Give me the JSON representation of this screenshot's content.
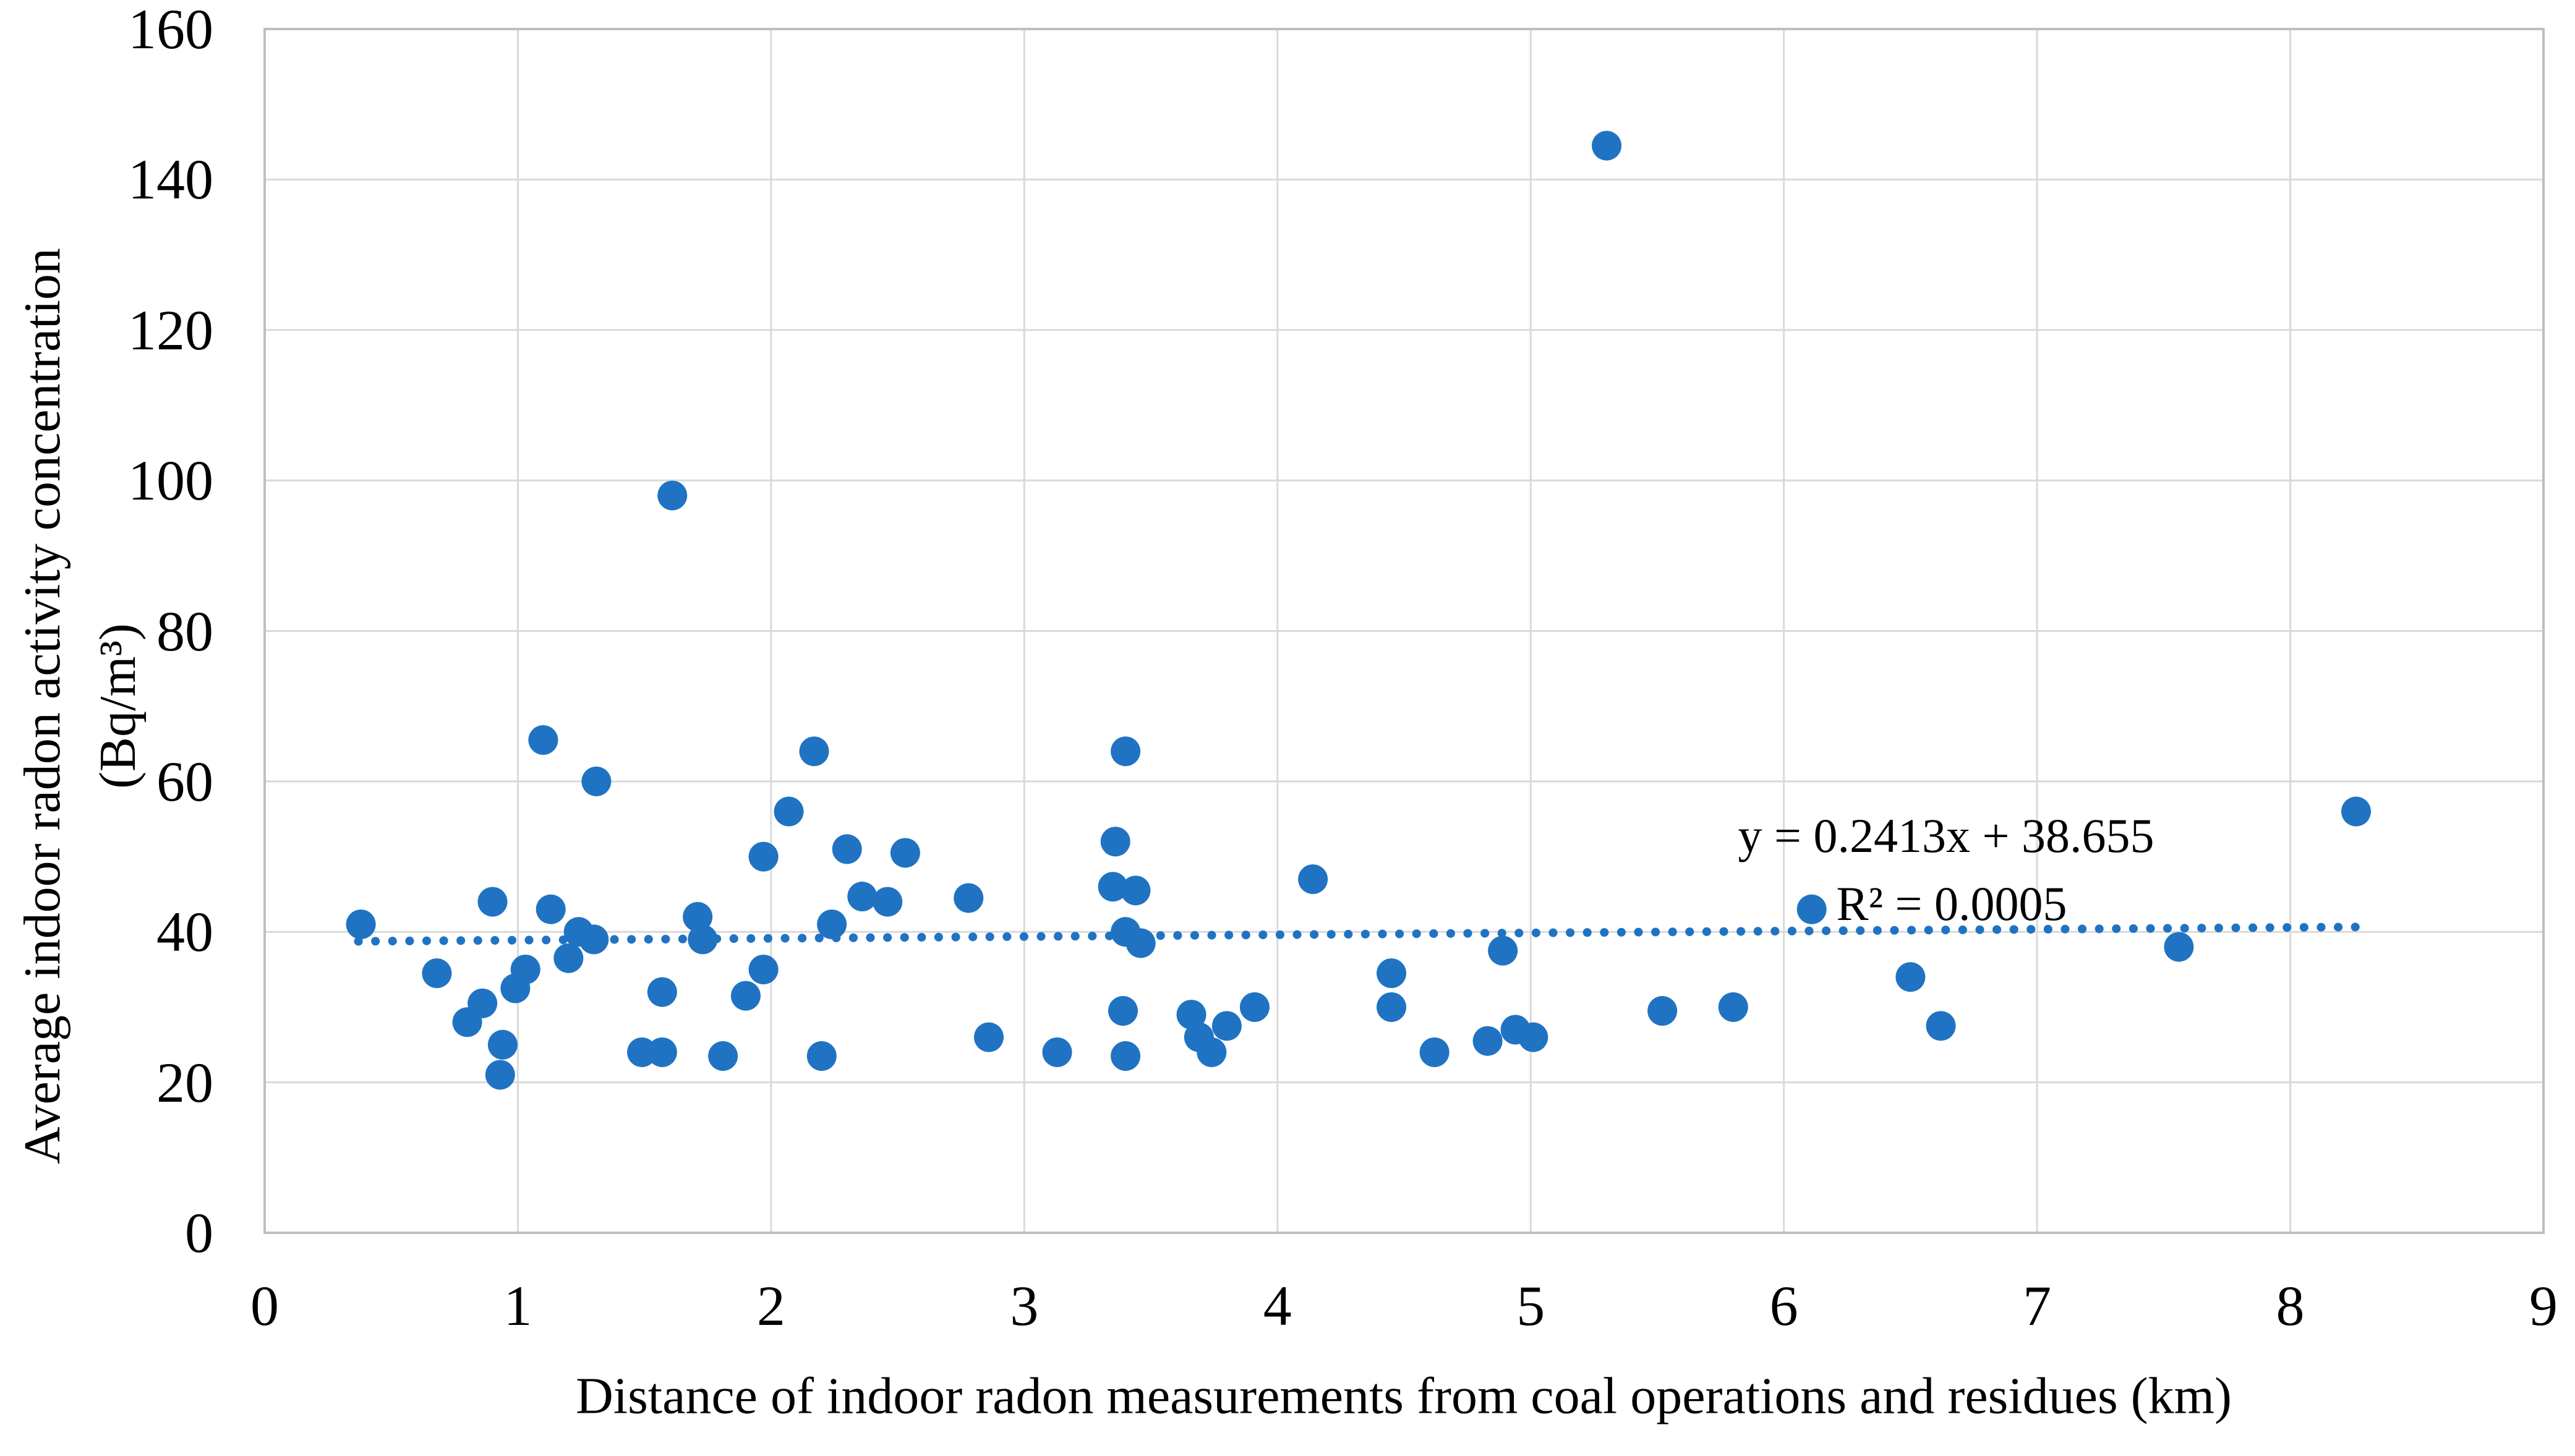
{
  "chart_data": {
    "type": "scatter",
    "title": "",
    "xlabel": "Distance of indoor radon measurements from coal operations and residues (km)",
    "ylabel_line1": "Average indoor radon activity concentration",
    "ylabel_line2": "(Bq/m³)",
    "xlim": [
      0,
      9
    ],
    "ylim": [
      0,
      160
    ],
    "x_ticks": [
      0,
      1,
      2,
      3,
      4,
      5,
      6,
      7,
      8,
      9
    ],
    "y_ticks": [
      0,
      20,
      40,
      60,
      80,
      100,
      120,
      140,
      160
    ],
    "grid": true,
    "legend_position": "none",
    "points": [
      [
        0.38,
        41
      ],
      [
        0.68,
        34.5
      ],
      [
        0.8,
        28
      ],
      [
        0.86,
        30.5
      ],
      [
        0.9,
        44
      ],
      [
        0.93,
        21
      ],
      [
        0.94,
        25
      ],
      [
        0.99,
        32.5
      ],
      [
        1.03,
        35
      ],
      [
        1.1,
        65.5
      ],
      [
        1.13,
        43
      ],
      [
        1.2,
        36.5
      ],
      [
        1.24,
        40
      ],
      [
        1.3,
        39
      ],
      [
        1.31,
        60
      ],
      [
        1.49,
        24
      ],
      [
        1.57,
        24
      ],
      [
        1.57,
        32
      ],
      [
        1.61,
        98
      ],
      [
        1.71,
        42
      ],
      [
        1.73,
        39
      ],
      [
        1.81,
        23.5
      ],
      [
        1.9,
        31.5
      ],
      [
        1.97,
        35
      ],
      [
        1.97,
        50
      ],
      [
        2.07,
        56
      ],
      [
        2.17,
        64
      ],
      [
        2.2,
        23.5
      ],
      [
        2.24,
        41
      ],
      [
        2.3,
        51
      ],
      [
        2.36,
        44.7
      ],
      [
        2.46,
        44
      ],
      [
        2.53,
        50.5
      ],
      [
        2.78,
        44.5
      ],
      [
        2.86,
        26
      ],
      [
        3.13,
        24
      ],
      [
        3.35,
        46
      ],
      [
        3.36,
        52
      ],
      [
        3.39,
        29.5
      ],
      [
        3.4,
        64
      ],
      [
        3.4,
        40
      ],
      [
        3.4,
        23.5
      ],
      [
        3.44,
        45.5
      ],
      [
        3.46,
        38.5
      ],
      [
        3.66,
        29
      ],
      [
        3.69,
        26
      ],
      [
        3.74,
        24
      ],
      [
        3.8,
        27.5
      ],
      [
        3.91,
        30
      ],
      [
        4.14,
        47
      ],
      [
        4.45,
        34.5
      ],
      [
        4.45,
        30
      ],
      [
        4.62,
        24
      ],
      [
        4.83,
        25.5
      ],
      [
        4.89,
        37.5
      ],
      [
        4.94,
        27
      ],
      [
        5.01,
        26
      ],
      [
        5.3,
        144.5
      ],
      [
        5.52,
        29.5
      ],
      [
        5.8,
        30
      ],
      [
        6.11,
        43
      ],
      [
        6.5,
        34
      ],
      [
        6.62,
        27.5
      ],
      [
        7.56,
        38
      ],
      [
        8.26,
        56
      ]
    ],
    "trendline": {
      "slope": 0.2413,
      "intercept": 38.655,
      "x_start": 0.37,
      "x_end": 8.27,
      "label_line1": "y = 0.2413x + 38.655",
      "label_line2": "R² = 0.0005"
    },
    "colors": {
      "point": "#2073C2",
      "trend": "#2073C2",
      "grid": "#D9D9D9",
      "border": "#BFBFBF",
      "text": "#000000"
    }
  }
}
